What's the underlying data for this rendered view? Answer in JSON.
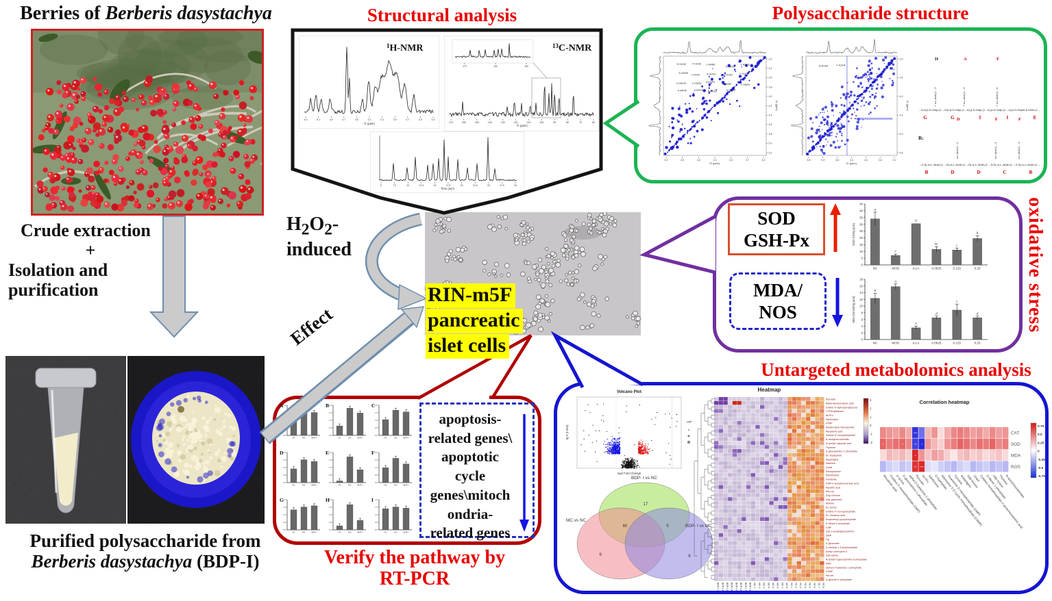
{
  "left": {
    "title_html": "Berries of <i>Berberis dasystachya</i>",
    "process_lines": [
      "Crude extraction",
      "+",
      "Isolation and",
      "purification"
    ],
    "caption_html": "Purified polysaccharide from<br><i>Berberis dasystachya</i> (BDP-I)"
  },
  "structural": {
    "title": "Structural analysis",
    "hnmr_label_html": "<sup>1</sup>H-NMR",
    "cnmr_label_html": "<sup>13</sup>C-NMR",
    "hnmr_ticks": [
      "5.3",
      "5.1",
      "4.9",
      "4.7",
      "4.5",
      "4.3",
      "4.1",
      "3.9",
      "3.7",
      "3.5",
      "3.3"
    ],
    "hnmr_xlabel": "f1 (ppm)",
    "cnmr_ticks": [
      "170",
      "160",
      "150",
      "140",
      "130",
      "120",
      "110",
      "100",
      "90",
      "80",
      "70",
      "60"
    ],
    "cnmr_inset_ticks": [
      "170",
      "150",
      "100"
    ],
    "cnmr_xlabel": "f1 (ppm)",
    "chrom_ticks": [
      "5",
      "7.5",
      "10",
      "12.5",
      "15",
      "17.5",
      "20",
      "22.5",
      "25",
      "27.5",
      "30"
    ],
    "chrom_xlabel": "Time (min)"
  },
  "center": {
    "h2o2_html": "H<sub>2</sub>O<sub>2</sub>-<br>induced",
    "effect_label": "Effect",
    "cell_label_lines": [
      "RIN-m5F",
      "pancreatic",
      "islet cells"
    ]
  },
  "polysaccharide": {
    "title": "Polysaccharide structure",
    "cosy": {
      "xticks": [
        "5.2",
        "4.9",
        "4.6",
        "4.3",
        "4.0",
        "3.7",
        "3.4"
      ],
      "yticks": [
        "3.2",
        "3.4",
        "3.6",
        "3.8",
        "4.0",
        "4.2",
        "4.4",
        "4.6",
        "4.8",
        "5.0",
        "5.2"
      ],
      "xlabel": "f2 (ppm)",
      "ylabel": "f1 (ppm)",
      "annotations": [
        "H H1/H2",
        "F H1/H2",
        "J H4/H5",
        "H H2/H3",
        "F H2/H3",
        "D H4/H5",
        "J H1/H2",
        "A H1/H2",
        "D H1/H2",
        "C H1/H2",
        "D H2/H3",
        "C H2/H3",
        "A H3/H4",
        "G H4/H5",
        "F H3/H4",
        "A H4/H5",
        "A H2/H3",
        "B H1/H2",
        "H H4/H5"
      ]
    },
    "noesy": {
      "xticks": [
        "5.6",
        "5.2",
        "4.8",
        "4.4",
        "4.0",
        "3.6",
        "3.2"
      ],
      "yticks": [
        "3.0",
        "3.5",
        "4.0",
        "4.5",
        "5.0",
        "5.5"
      ],
      "xlabel": "f2 (ppm)",
      "ylabel": "f1 (ppm)",
      "annotations": [
        "B H1/H4",
        "F H1/H4"
      ]
    },
    "formula": {
      "main_chain": "→3,6)-β-D-Galp-(1→3,6)-β-D-Galp-(1→6)-β-D-Galp-(1→6)-β-D-Galp-(1→4)-β-D-GalpA-6-OMe-(1→",
      "main_letters": [
        "G",
        "G",
        "I",
        "I",
        "E"
      ],
      "main_branches": [
        {
          "text": "α-L-Araf-(1→3",
          "letter": "H",
          "red": false
        },
        {
          "text": "α-L-Araf-(1→3",
          "letter": "A",
          "red": true
        },
        {
          "text": "α-L-Araf-(1→6",
          "letter": "F",
          "red": true
        }
      ],
      "side_label": "R:",
      "side_chain": "→2,5)-α-L-Araf-(1→5)-α-L-Araf-(1→5)-α-L-Araf-(1→3,5)-α-L-Araf-(1→2,5)-α-L-Araf-(1→",
      "side_letters": [
        "B",
        "D",
        "D",
        "C",
        "B"
      ],
      "side_branches": [
        {
          "text": "α-L-Araf-(1→2",
          "letter": "D",
          "red": true
        },
        {
          "text": "α-L-Araf-(1→3",
          "letter": "F",
          "red": true
        },
        {
          "text": "α-L-Araf-(1→3",
          "letter": "F",
          "red": true
        }
      ]
    }
  },
  "oxidative": {
    "side_title": "oxidative stress",
    "sod_box_lines": [
      "SOD",
      "GSH-Px"
    ],
    "mda_box_lines": [
      "MDA/",
      "NOS"
    ]
  },
  "rtpcr": {
    "dashed_lines": [
      "apoptosis-",
      "related genes\\",
      "apoptotic",
      "cycle",
      "genes\\mitoch",
      "ondria-",
      "related genes"
    ],
    "caption_lines": [
      "Verify the pathway by",
      "RT-PCR"
    ]
  },
  "metabolomics": {
    "title": "Untargeted metabolomics analysis"
  },
  "chart_data": [
    {
      "id": "sod_bar",
      "type": "bar",
      "title": "",
      "categories": [
        "NC",
        "MOD",
        "α-LA",
        "0.0625",
        "0.125",
        "0.25"
      ],
      "values": [
        34,
        7,
        30.5,
        11.5,
        11,
        19.5
      ],
      "errors": [
        5,
        1,
        0,
        2,
        1.5,
        2
      ],
      "sig_letters": [
        "a",
        "c",
        "b",
        "bc",
        "c",
        "b"
      ],
      "xlabel": "",
      "ylabel": "SOD (U/mg prot)",
      "ylim": [
        0,
        45
      ],
      "ystep": 5
    },
    {
      "id": "mda_bar",
      "type": "bar",
      "title": "",
      "categories": [
        "NC",
        "MOD",
        "α-LA",
        "0.0625",
        "0.125",
        "0.25"
      ],
      "values": [
        12.3,
        15.8,
        3.5,
        6.5,
        8.8,
        6.5
      ],
      "errors": [
        1.5,
        0.8,
        0.5,
        0.5,
        1.8,
        0.5
      ],
      "sig_letters": [
        "b",
        "a",
        "e",
        "d",
        "c",
        "d"
      ],
      "xlabel": "",
      "ylabel": "MDA (nmol/mg prot)",
      "ylim": [
        0,
        18
      ],
      "ystep": 2
    },
    {
      "id": "rtpcr_panels",
      "type": "bar",
      "categories": [
        "NC",
        "MC",
        "BDP-I"
      ],
      "panels": [
        {
          "label": "A",
          "values": [
            0.62,
            0.9,
            0.8
          ]
        },
        {
          "label": "B",
          "values": [
            0.33,
            0.95,
            0.78
          ]
        },
        {
          "label": "C",
          "values": [
            0.55,
            0.88,
            0.82
          ]
        },
        {
          "label": "D",
          "values": [
            0.48,
            0.8,
            0.74
          ]
        },
        {
          "label": "E",
          "values": [
            0.06,
            0.9,
            0.45
          ]
        },
        {
          "label": "F",
          "values": [
            0.52,
            0.85,
            0.65
          ]
        },
        {
          "label": "G",
          "values": [
            0.7,
            0.8,
            0.84
          ]
        },
        {
          "label": "H",
          "values": [
            0.14,
            0.88,
            0.33
          ]
        },
        {
          "label": "I",
          "values": [
            0.74,
            0.8,
            0.76
          ]
        }
      ]
    },
    {
      "id": "volcano",
      "type": "scatter",
      "title": "Volcano Plot",
      "xlabel": "log2 Fold Change",
      "ylabel": "-lg P (t-test)",
      "legend": "VIP",
      "xlim": [
        -4,
        4
      ],
      "ylim": [
        0,
        7
      ],
      "clusters": {
        "down_color": "#1515e0",
        "up_color": "#e01515",
        "ns_color": "#111111"
      }
    },
    {
      "id": "venn",
      "type": "pie",
      "sets": [
        {
          "label": "BDP- I vs NC",
          "color": "#9ade4e"
        },
        {
          "label": "MC vs NC",
          "color": "#f08a92"
        },
        {
          "label": "BDP- I vs MC",
          "color": "#8e86e0"
        }
      ],
      "counts": {
        "top_only": "17",
        "top_left": "60",
        "top_right": "5",
        "left_only": "9",
        "right_only": "6"
      }
    },
    {
      "id": "metabolite_heatmap",
      "type": "heatmap",
      "title": "Heatmap",
      "rows": [
        "Pyruvate",
        "Alpha-ketoisovaleric acid",
        "Uridine 5'-diphosphoglucose",
        "L-Phenylalanine",
        "Ile-Pro",
        "Xanthosine",
        "dTMP",
        "Diadenosine triphosphate",
        "Mevalonic acid",
        "Inosine 5'-monophosphate",
        "N-acetylneuraminate",
        "N-acetyl-l-aspartic acid",
        "Thymine",
        "D-glucosamine 1-phosphate",
        "DL-tryptophan",
        "Asparagine",
        "Xanthine",
        "Uracil",
        "Deoxyinosine",
        "Pantetheine",
        "Fumarate",
        "CMP-n-acetylneuraminic acid",
        "Aspartic acid",
        "His-Lys",
        "Gdp-l-fucose",
        "Udp-galactose",
        "Alanine",
        "DL-serine",
        "Uridine 5'-monophosphate",
        "DL-Glutamic acid",
        "Isopentenyl pyrophosphate",
        "D-ribose 1-phosphate",
        "CMP",
        "Udp-n-acetylglucosamine",
        "GMP",
        "Trp",
        "D-gluconate",
        "D-ribulose 1,5-bisphosphate",
        "Acetyl coenzyme a",
        "Udp-xylose",
        "N-acetyl-d-glucosamine 6-phosphate",
        "NAD",
        "alpha-D-Galactose 1-phosphate",
        "CAMP",
        "His-ser",
        "D-glucose 6-phosphate"
      ],
      "columns": [
        "BDP-I-1",
        "BDP-I-2",
        "BDP-I-3",
        "BDP-I-4",
        "BDP-I-5",
        "BDP-I-6",
        "BDP-I-7",
        "BDP-I-8",
        "MC-1",
        "MC-2",
        "MC-3",
        "MC-4",
        "MC-5",
        "MC-6",
        "MC-7",
        "MC-8",
        "NC-1",
        "NC-2",
        "NC-3",
        "NC-4",
        "NC-5",
        "NC-6",
        "NC-7",
        "NC-8"
      ],
      "group_pattern": {
        "BDP-I": "low (purple)",
        "MC": "low (purple)",
        "NC": "high (orange/red)"
      },
      "colorbar_ticks": [
        "3",
        "2",
        "1",
        "0",
        "-1",
        "-2"
      ]
    },
    {
      "id": "correlation_heatmap",
      "type": "heatmap",
      "title": "Correlation heatmap",
      "rows": [
        "CAT",
        "SOD",
        "MDA",
        "ROS"
      ],
      "columns": [
        "Mevalonic acid",
        "Cytidine 5'-monophosphate (CMP)",
        "D-serine",
        "D-glucosamine 1-phosphate",
        "alpha-D-Galactose 1-phosphate",
        "Pyruvate",
        "Ile-Pro",
        "Xanthosine",
        "D-tryptophan",
        "Adenosine 3',5'-cyclic monophosphate (CAMP)",
        "Guanosine 5'-monophosphate (GMP)",
        "Tyrosine",
        "Asparagine",
        "Gdp-fucose",
        "Uracil",
        "Cytidine monophosphate n-acetylneuraminic acid",
        "D-ribose 1-phosphate",
        "Udp-xylose",
        "Thymine",
        "N-acetylneuraminate"
      ],
      "values": [
        [
          0.5,
          0.45,
          0.4,
          0.5,
          0.35,
          -0.85,
          -0.6,
          0.3,
          0.45,
          0.15,
          0.35,
          0.5,
          0.55,
          0.5,
          0.4,
          0.45,
          0.35,
          0.5,
          0.4,
          0.45
        ],
        [
          0.65,
          0.55,
          0.6,
          0.65,
          0.5,
          -0.8,
          -0.9,
          0.45,
          0.3,
          0.2,
          0.45,
          0.55,
          0.65,
          0.6,
          0.5,
          0.6,
          0.55,
          0.65,
          0.5,
          0.55
        ],
        [
          0.15,
          0.3,
          0.25,
          0.3,
          0.2,
          0.9,
          0.45,
          0.25,
          0.4,
          0.35,
          0.2,
          0.1,
          0.25,
          0.3,
          0.2,
          0.25,
          0.15,
          0.2,
          0.25,
          0.15
        ],
        [
          -0.3,
          -0.2,
          -0.15,
          -0.25,
          -0.2,
          0.85,
          0.9,
          -0.15,
          -0.1,
          -0.2,
          -0.25,
          -0.3,
          -0.2,
          -0.15,
          -0.3,
          -0.25,
          -0.2,
          -0.3,
          -0.25,
          -0.3
        ]
      ],
      "sig_marks": [
        {
          "r": 0,
          "c": 5,
          "m": "***"
        },
        {
          "r": 1,
          "c": 0,
          "m": "*"
        },
        {
          "r": 1,
          "c": 3,
          "m": "*"
        },
        {
          "r": 1,
          "c": 5,
          "m": "**"
        },
        {
          "r": 1,
          "c": 6,
          "m": "*"
        },
        {
          "r": 1,
          "c": 9,
          "m": "*"
        },
        {
          "r": 2,
          "c": 5,
          "m": "*"
        },
        {
          "r": 3,
          "c": 5,
          "m": "**"
        },
        {
          "r": 3,
          "c": 6,
          "m": "***"
        }
      ],
      "colorbar_ticks": [
        "0.75",
        "0.5",
        "0.25",
        "0",
        "-0.25",
        "-0.5",
        "-0.75"
      ]
    }
  ]
}
